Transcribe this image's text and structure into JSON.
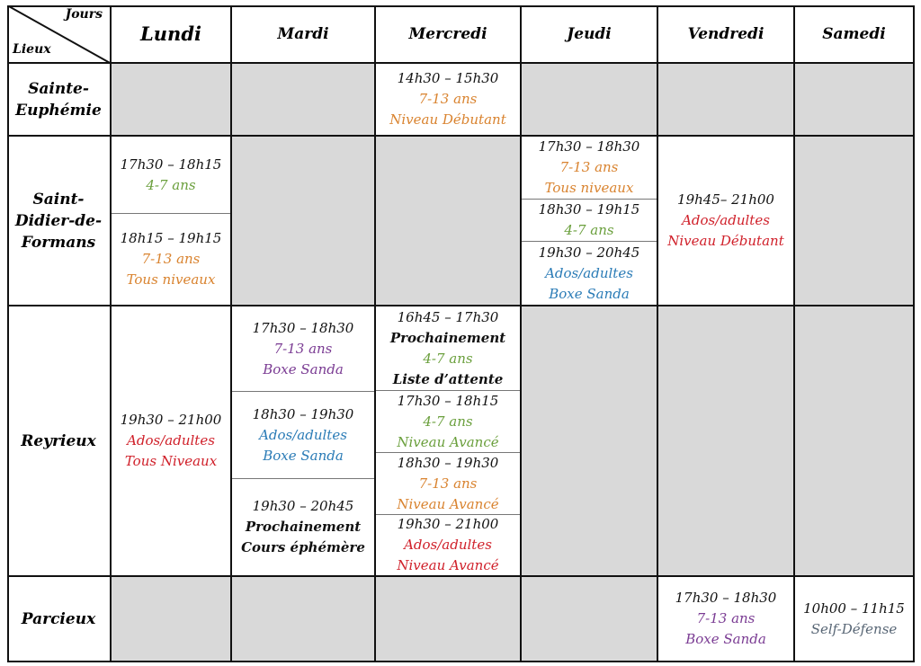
{
  "header": {
    "corner_top": "Jours",
    "corner_bottom": "Lieux",
    "days": [
      "Lundi",
      "Mardi",
      "Mercredi",
      "Jeudi",
      "Vendredi",
      "Samedi"
    ]
  },
  "places": [
    "Sainte-\nEuphémie",
    "Saint-\nDidier-de-\nFormans",
    "Reyrieux",
    "Parcieux"
  ],
  "colors": {
    "black": "#111111",
    "orange": "#d9832f",
    "green": "#6a9f3c",
    "red": "#d0202a",
    "blue": "#2a7bb6",
    "purple": "#7a3b93",
    "slate": "#586675",
    "gray_cell": "#d9d9d9"
  },
  "slots": {
    "ste_mer": [
      {
        "text": "14h30 – 15h30",
        "color": "black"
      },
      {
        "text": "7-13 ans",
        "color": "orange"
      },
      {
        "text": "Niveau Débutant",
        "color": "orange"
      }
    ],
    "sdf_lun_1": [
      {
        "text": "17h30 – 18h15",
        "color": "black"
      },
      {
        "text": "4-7 ans",
        "color": "green"
      }
    ],
    "sdf_lun_2": [
      {
        "text": "18h15 – 19h15",
        "color": "black"
      },
      {
        "text": "7-13 ans",
        "color": "orange"
      },
      {
        "text": "Tous niveaux",
        "color": "orange"
      }
    ],
    "sdf_jeu_1": [
      {
        "text": "17h30 – 18h30",
        "color": "black"
      },
      {
        "text": "7-13 ans",
        "color": "orange"
      },
      {
        "text": "Tous niveaux",
        "color": "orange"
      }
    ],
    "sdf_jeu_2": [
      {
        "text": "18h30 – 19h15",
        "color": "black"
      },
      {
        "text": "4-7 ans",
        "color": "green"
      }
    ],
    "sdf_jeu_3": [
      {
        "text": "19h30 – 20h45",
        "color": "black"
      },
      {
        "text": "Ados/adultes",
        "color": "blue"
      },
      {
        "text": "Boxe Sanda",
        "color": "blue"
      }
    ],
    "sdf_ven": [
      {
        "text": "19h45– 21h00",
        "color": "black"
      },
      {
        "text": "Ados/adultes",
        "color": "red"
      },
      {
        "text": "Niveau Débutant",
        "color": "red"
      }
    ],
    "rey_lun": [
      {
        "text": "19h30 – 21h00",
        "color": "black"
      },
      {
        "text": "Ados/adultes",
        "color": "red"
      },
      {
        "text": "Tous Niveaux",
        "color": "red"
      }
    ],
    "rey_mar_1": [
      {
        "text": "17h30 – 18h30",
        "color": "black"
      },
      {
        "text": "7-13 ans",
        "color": "purple"
      },
      {
        "text": "Boxe Sanda",
        "color": "purple"
      }
    ],
    "rey_mar_2": [
      {
        "text": "18h30 – 19h30",
        "color": "black"
      },
      {
        "text": "Ados/adultes",
        "color": "blue"
      },
      {
        "text": "Boxe Sanda",
        "color": "blue"
      }
    ],
    "rey_mar_3": [
      {
        "text": "19h30 – 20h45",
        "color": "black"
      },
      {
        "text": "Prochainement",
        "color": "black",
        "bold": true
      },
      {
        "text": "Cours éphémère",
        "color": "black",
        "bold": true
      }
    ],
    "rey_mer_1": [
      {
        "text": "16h45 – 17h30",
        "color": "black"
      },
      {
        "text": "Prochainement",
        "color": "black",
        "bold": true
      },
      {
        "text": "4-7 ans",
        "color": "green"
      },
      {
        "text": "Liste d’attente",
        "color": "black",
        "bold": true
      }
    ],
    "rey_mer_2": [
      {
        "text": "17h30 – 18h15",
        "color": "black"
      },
      {
        "text": "4-7 ans",
        "color": "green"
      },
      {
        "text": "Niveau Avancé",
        "color": "green"
      }
    ],
    "rey_mer_3": [
      {
        "text": "18h30 – 19h30",
        "color": "black"
      },
      {
        "text": "7-13 ans",
        "color": "orange"
      },
      {
        "text": "Niveau Avancé",
        "color": "orange"
      }
    ],
    "rey_mer_4": [
      {
        "text": "19h30 – 21h00",
        "color": "black"
      },
      {
        "text": "Ados/adultes",
        "color": "red"
      },
      {
        "text": "Niveau Avancé",
        "color": "red"
      }
    ],
    "par_ven": [
      {
        "text": "17h30 – 18h30",
        "color": "black"
      },
      {
        "text": "7-13 ans",
        "color": "purple"
      },
      {
        "text": "Boxe Sanda",
        "color": "purple"
      }
    ],
    "par_sam": [
      {
        "text": "10h00 – 11h15",
        "color": "black"
      },
      {
        "text": "Self-Défense",
        "color": "slate"
      }
    ]
  }
}
